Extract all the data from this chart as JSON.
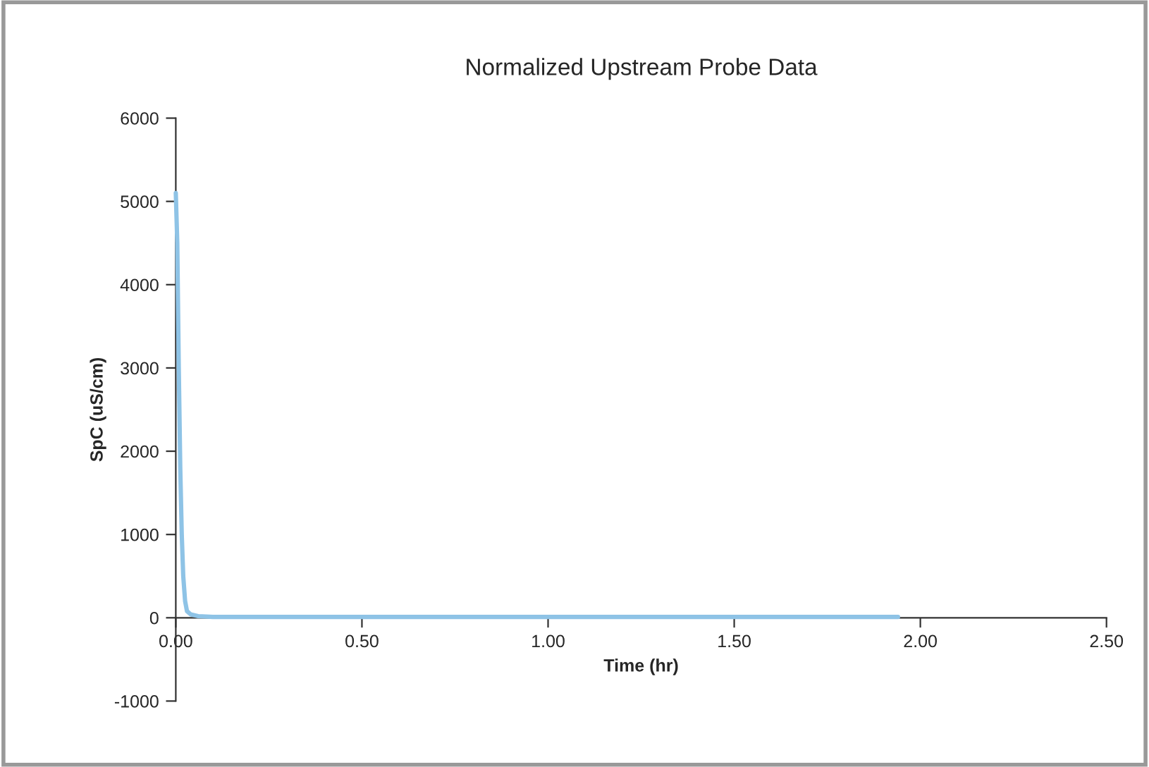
{
  "chart_data": {
    "type": "line",
    "title": "Normalized Upstream Probe Data",
    "xlabel": "Time (hr)",
    "ylabel": "SpC (uS/cm)",
    "x": [
      0,
      0.004,
      0.008,
      0.012,
      0.016,
      0.02,
      0.025,
      0.03,
      0.04,
      0.06,
      0.1,
      0.3,
      0.6,
      1.0,
      1.5,
      1.94
    ],
    "series": [
      {
        "color": "#8ec3e6",
        "values": [
          5100,
          4500,
          3000,
          1800,
          1000,
          500,
          200,
          80,
          40,
          20,
          10,
          10,
          10,
          10,
          10,
          10
        ]
      }
    ],
    "xlim": [
      0,
      2.5
    ],
    "xticks": [
      {
        "value": 0,
        "label": "0.00"
      },
      {
        "value": 0.5,
        "label": "0.50"
      },
      {
        "value": 1,
        "label": "1.00"
      },
      {
        "value": 1.5,
        "label": "1.50"
      },
      {
        "value": 2,
        "label": "2.00"
      },
      {
        "value": 2.5,
        "label": "2.50"
      }
    ],
    "ylim": [
      -1000,
      6000
    ],
    "yticks": [
      -1000,
      0,
      1000,
      2000,
      3000,
      4000,
      5000,
      6000
    ],
    "grid": false,
    "legend": false,
    "marker": "none",
    "line_style": "solid"
  }
}
